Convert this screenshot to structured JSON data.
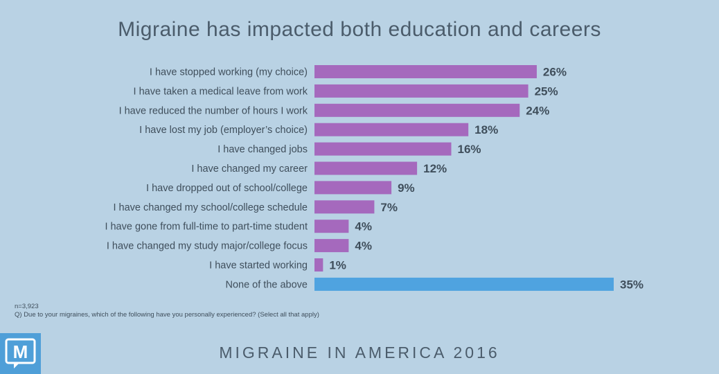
{
  "title": "Migraine has impacted both education and careers",
  "notes": {
    "n": "n=3,923",
    "question": "Q) Due to your migraines, which of the following have you personally experienced? (Select all that apply)"
  },
  "footer": "MIGRAINE IN AMERICA 2016",
  "logo_letter": "M",
  "colors": {
    "background": "#b9d2e4",
    "bar_primary": "#a569bd",
    "bar_highlight": "#4fa3e0",
    "text": "#3f4e5b"
  },
  "chart_data": {
    "type": "bar",
    "orientation": "horizontal",
    "categories": [
      "I have stopped working (my choice)",
      "I have taken a medical leave from work",
      "I have reduced the number of hours I work",
      "I have lost my job (employer’s choice)",
      "I have changed jobs",
      "I have changed my career",
      "I have dropped out of school/college",
      "I have changed my school/college schedule",
      "I have gone from full-time to part-time student",
      "I have changed my study major/college focus",
      "I have started working",
      "None of the above"
    ],
    "values": [
      26,
      25,
      24,
      18,
      16,
      12,
      9,
      7,
      4,
      4,
      1,
      35
    ],
    "value_labels": [
      "26%",
      "25%",
      "24%",
      "18%",
      "16%",
      "12%",
      "9%",
      "7%",
      "4%",
      "4%",
      "1%",
      "35%"
    ],
    "highlight_index": 11,
    "xlim": [
      0,
      35
    ],
    "grid": false,
    "legend": "none"
  }
}
